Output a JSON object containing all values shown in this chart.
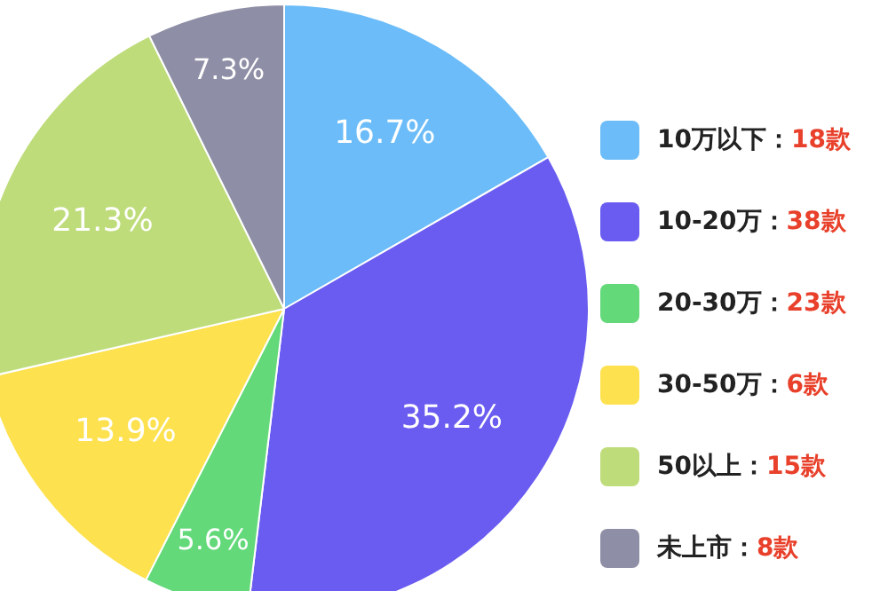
{
  "chart_data": {
    "type": "pie",
    "categories": [
      "10万以下：18款",
      "10-20万：38款",
      "20-30万：23款",
      "30-50万：6款",
      "50以上：15款",
      "未上市：8款"
    ],
    "values": [
      16.7,
      35.2,
      5.6,
      13.9,
      21.3,
      7.3
    ],
    "colors": [
      "#6bbcf8",
      "#6a5cf0",
      "#63d97a",
      "#fde14e",
      "#bedc7a",
      "#8e8ea6"
    ],
    "value_labels": [
      "16.7%",
      "35.2%",
      "5.6%",
      "13.9%",
      "21.3%",
      "7.3%"
    ],
    "legend": "right"
  }
}
